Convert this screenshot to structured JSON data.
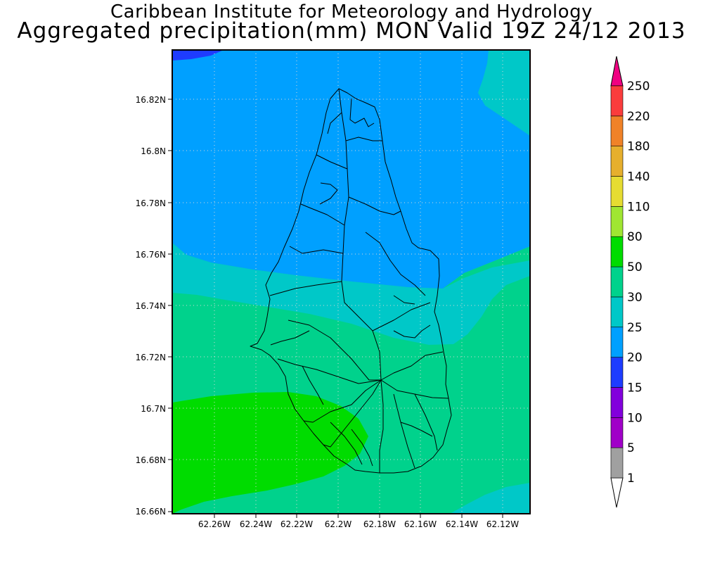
{
  "title": "Caribbean Institute for Meteorology and Hydrology",
  "subtitle": "Aggregated precipitation(mm) MON Valid 19Z 24/12 2013",
  "y_ticks": [
    "16.82N",
    "16.8N",
    "16.78N",
    "16.76N",
    "16.74N",
    "16.72N",
    "16.7N",
    "16.68N",
    "16.66N"
  ],
  "x_ticks": [
    "62.26W",
    "62.24W",
    "62.22W",
    "62.2W",
    "62.18W",
    "62.16W",
    "62.14W",
    "62.12W"
  ],
  "colorbar": {
    "levels": [
      "1",
      "5",
      "10",
      "15",
      "20",
      "25",
      "30",
      "50",
      "80",
      "110",
      "140",
      "180",
      "220",
      "250"
    ],
    "colors": [
      "#a0a0a0",
      "#a000c8",
      "#8200dc",
      "#1e3cff",
      "#00a0ff",
      "#00c8c8",
      "#00d28c",
      "#00dc00",
      "#a0e632",
      "#e6dc32",
      "#e6af2d",
      "#f08228",
      "#fa3c3c",
      "#f00082"
    ],
    "under_color": "#ffffff",
    "over_color": "#f00082"
  },
  "chart_data": {
    "type": "heatmap",
    "variable": "Aggregated precipitation(mm)",
    "x_range_deg_west": [
      62.28,
      62.105
    ],
    "y_range_deg_north": [
      16.66,
      16.84
    ],
    "field_levels_present_mm": [
      "15-20",
      "20-25",
      "25-30",
      "30-50",
      "50-80"
    ],
    "regions": [
      {
        "band": "15-20",
        "color": "#1e3cff",
        "area": "thin strip along top-left edge"
      },
      {
        "band": "20-25",
        "color": "#00a0ff",
        "area": "northern half"
      },
      {
        "band": "25-30",
        "color": "#00c8c8",
        "area": "band crossing mid-map and top-right and bottom-right corners"
      },
      {
        "band": "30-50",
        "color": "#00d28c",
        "area": "southern half"
      },
      {
        "band": "50-80",
        "color": "#00dc00",
        "area": "southwest lobe"
      }
    ],
    "grid": true
  }
}
